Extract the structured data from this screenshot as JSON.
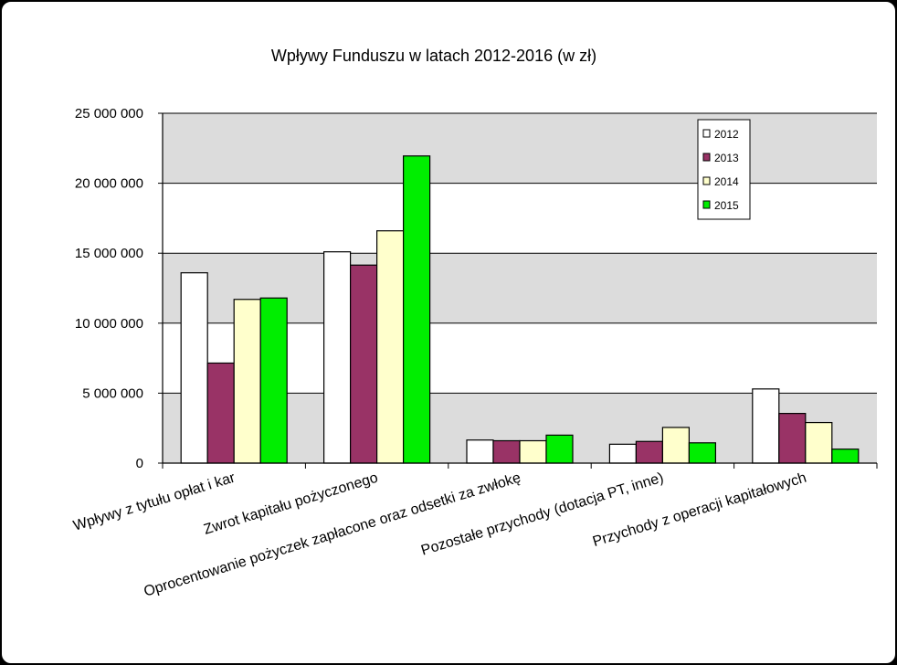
{
  "chart_data": {
    "type": "bar",
    "title": "Wpływy Funduszu w latach 2012-2016 (w zł)",
    "xlabel": "",
    "ylabel": "",
    "ylim": [
      0,
      25000000
    ],
    "y_ticks": [
      0,
      5000000,
      10000000,
      15000000,
      20000000,
      25000000
    ],
    "y_tick_labels": [
      "0",
      "5 000 000",
      "10 000 000",
      "15 000 000",
      "20 000 000",
      "25 000 000"
    ],
    "grid": "horizontal",
    "legend_position": "top-right",
    "categories": [
      "Wpływy z tytułu opłat i kar",
      "Zwrot kapitału pożyczonego",
      "Oprocentowanie pożyczek  zapłacone oraz odsetki za zwłokę",
      "Pozostałe przychody  (dotacja PT, inne)",
      "Przychody z operacji kapitałowych"
    ],
    "series": [
      {
        "name": "2012",
        "color": "#ffffff",
        "values": [
          13600000,
          15100000,
          1650000,
          1350000,
          5300000
        ]
      },
      {
        "name": "2013",
        "color": "#993366",
        "values": [
          7150000,
          14150000,
          1600000,
          1550000,
          3550000
        ]
      },
      {
        "name": "2014",
        "color": "#ffffcc",
        "values": [
          11700000,
          16600000,
          1600000,
          2550000,
          2900000
        ]
      },
      {
        "name": "2015",
        "color": "#00ee00",
        "values": [
          11800000,
          21950000,
          2000000,
          1450000,
          1000000
        ]
      }
    ]
  }
}
